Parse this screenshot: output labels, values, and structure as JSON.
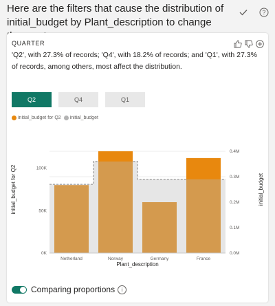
{
  "header": {
    "title": "Here are the filters that cause the distribution of initial_budget by Plant_description to change the most",
    "icons": [
      "checkmark-icon",
      "help-icon"
    ]
  },
  "card": {
    "tag": "QUARTER",
    "description": "'Q2', with 27.3% of records; 'Q4', with 18.2% of records; and 'Q1', with 27.3% of records, among others, most affect the distribution.",
    "icons": [
      "thumbs-up-icon",
      "thumbs-down-icon",
      "add-icon"
    ],
    "tabs": [
      {
        "label": "Q2",
        "active": true
      },
      {
        "label": "Q4",
        "active": false
      },
      {
        "label": "Q1",
        "active": false
      }
    ],
    "legend": [
      {
        "label": "initial_budget for Q2",
        "color": "#e8880e"
      },
      {
        "label": "initial_budget",
        "color": "#b3b3b3"
      }
    ],
    "toggle": {
      "label": "Comparing proportions",
      "on": true
    }
  },
  "chart_data": {
    "type": "bar",
    "categories": [
      "Netherland",
      "Norway",
      "Germany",
      "France"
    ],
    "series": [
      {
        "name": "initial_budget for Q2",
        "axis": "left",
        "color": "#e8880e",
        "values": [
          80000,
          120000,
          60000,
          112000
        ]
      },
      {
        "name": "initial_budget",
        "axis": "right",
        "color": "#b3b3b3",
        "values": [
          0.27,
          0.36,
          0.29,
          0.29
        ]
      }
    ],
    "xlabel": "Plant_description",
    "ylabel_left": "initial_budget for Q2",
    "ylabel_right": "initial_budget",
    "ylim_left": [
      0,
      150000
    ],
    "ylim_right": [
      0,
      0.5
    ],
    "yticks_left": [
      {
        "value": 0,
        "label": "0K"
      },
      {
        "value": 50000,
        "label": "50K"
      },
      {
        "value": 100000,
        "label": "100K"
      }
    ],
    "yticks_right": [
      {
        "value": 0,
        "label": "0.0M"
      },
      {
        "value": 0.1,
        "label": "0.1M"
      },
      {
        "value": 0.2,
        "label": "0.2M"
      },
      {
        "value": 0.3,
        "label": "0.3M"
      },
      {
        "value": 0.4,
        "label": "0.4M"
      }
    ]
  }
}
